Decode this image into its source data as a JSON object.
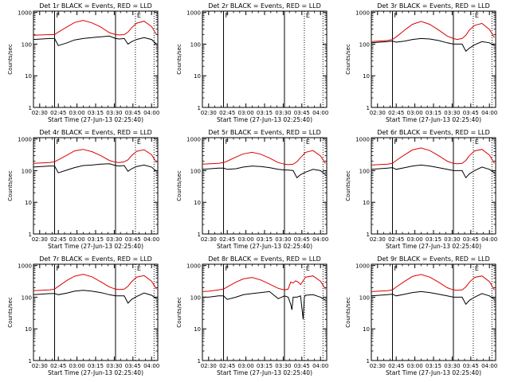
{
  "chart_data": [
    {
      "type": "line",
      "title": "Det 1r  BLACK = Events, RED = LLD",
      "xlabel": "Start Time (27-Jun-13 02:25:40)",
      "ylabel": "Counts/sec",
      "x_ticks": [
        "02:30",
        "02:45",
        "03:00",
        "03:15",
        "03:30",
        "03:45",
        "04:00"
      ],
      "y_ticks": [
        "1",
        "10",
        "100",
        "1000"
      ],
      "xlim_min": [
        25,
        125
      ],
      "ylog": true,
      "ylim": [
        1,
        1100
      ],
      "vlines_solid_min": [
        42,
        91
      ],
      "vlines_dotted_min": [
        107,
        122
      ],
      "markers": [
        {
          "label": "F",
          "t": 42
        },
        {
          "label": "E",
          "t": 107
        }
      ],
      "series": [
        {
          "color": "#000000",
          "x": [
            25,
            38,
            42,
            45,
            52,
            58,
            65,
            72,
            79,
            86,
            91,
            94,
            98,
            101,
            104,
            108,
            114,
            120,
            124
          ],
          "y": [
            140,
            150,
            150,
            90,
            110,
            135,
            150,
            160,
            170,
            180,
            150,
            145,
            150,
            100,
            120,
            140,
            160,
            140,
            100
          ]
        },
        {
          "color": "#dd0000",
          "x": [
            25,
            38,
            42,
            45,
            52,
            58,
            65,
            72,
            79,
            86,
            91,
            94,
            98,
            101,
            104,
            108,
            114,
            120,
            124
          ],
          "y": [
            190,
            200,
            200,
            240,
            350,
            480,
            560,
            470,
            350,
            230,
            200,
            195,
            200,
            240,
            330,
            460,
            530,
            360,
            200
          ]
        }
      ]
    },
    {
      "type": "line",
      "title": "Det 2r  BLACK = Events, RED = LLD",
      "xlabel": "Start Time (27-Jun-13 02:25:40)",
      "ylabel": "Counts/sec",
      "x_ticks": [
        "02:30",
        "02:45",
        "03:00",
        "03:15",
        "03:30",
        "03:45",
        "04:00"
      ],
      "y_ticks": [
        "1",
        "10",
        "100",
        "1000"
      ],
      "xlim_min": [
        25,
        125
      ],
      "ylog": true,
      "ylim": [
        1,
        1100
      ],
      "vlines_solid_min": [
        42,
        91
      ],
      "vlines_dotted_min": [
        107,
        122
      ],
      "markers": [
        {
          "label": "F",
          "t": 42
        },
        {
          "label": "E",
          "t": 107
        }
      ],
      "series": []
    },
    {
      "type": "line",
      "title": "Det 3r  BLACK = Events, RED = LLD",
      "xlabel": "Start Time (27-Jun-13 02:25:40)",
      "ylabel": "Counts/sec",
      "x_ticks": [
        "02:30",
        "02:45",
        "03:00",
        "03:15",
        "03:30",
        "03:45",
        "04:00"
      ],
      "y_ticks": [
        "1",
        "10",
        "100",
        "1000"
      ],
      "xlim_min": [
        25,
        125
      ],
      "ylog": true,
      "ylim": [
        1,
        1100
      ],
      "vlines_solid_min": [
        42,
        91
      ],
      "vlines_dotted_min": [
        107,
        122
      ],
      "markers": [
        {
          "label": "F",
          "t": 42
        },
        {
          "label": "E",
          "t": 107
        }
      ],
      "series": [
        {
          "color": "#000000",
          "x": [
            25,
            38,
            42,
            45,
            52,
            58,
            65,
            72,
            79,
            86,
            91,
            94,
            98,
            101,
            104,
            108,
            114,
            120,
            124
          ],
          "y": [
            110,
            120,
            125,
            115,
            125,
            140,
            150,
            145,
            130,
            110,
            100,
            100,
            100,
            60,
            75,
            95,
            120,
            110,
            90
          ]
        },
        {
          "color": "#dd0000",
          "x": [
            25,
            38,
            42,
            45,
            52,
            58,
            65,
            72,
            79,
            86,
            91,
            94,
            98,
            101,
            104,
            108,
            114,
            120,
            124
          ],
          "y": [
            120,
            130,
            140,
            170,
            280,
            420,
            520,
            420,
            280,
            180,
            150,
            140,
            150,
            190,
            280,
            390,
            450,
            290,
            160
          ]
        }
      ]
    },
    {
      "type": "line",
      "title": "Det 4r  BLACK = Events, RED = LLD",
      "xlabel": "Start Time (27-Jun-13 02:25:40)",
      "ylabel": "Counts/sec",
      "x_ticks": [
        "02:30",
        "02:45",
        "03:00",
        "03:15",
        "03:30",
        "03:45",
        "04:00"
      ],
      "y_ticks": [
        "1",
        "10",
        "100",
        "1000"
      ],
      "xlim_min": [
        25,
        125
      ],
      "ylog": true,
      "ylim": [
        1,
        1100
      ],
      "vlines_solid_min": [
        42,
        91
      ],
      "vlines_dotted_min": [
        107,
        122
      ],
      "markers": [
        {
          "label": "F",
          "t": 42
        },
        {
          "label": "E",
          "t": 107
        }
      ],
      "series": [
        {
          "color": "#000000",
          "x": [
            25,
            38,
            42,
            45,
            52,
            58,
            65,
            72,
            79,
            86,
            91,
            94,
            98,
            101,
            104,
            108,
            114,
            120,
            124
          ],
          "y": [
            130,
            140,
            140,
            85,
            105,
            125,
            145,
            150,
            160,
            165,
            145,
            140,
            145,
            95,
            115,
            135,
            150,
            130,
            95
          ]
        },
        {
          "color": "#dd0000",
          "x": [
            25,
            38,
            42,
            45,
            52,
            58,
            65,
            72,
            79,
            86,
            91,
            94,
            98,
            101,
            104,
            108,
            114,
            120,
            124
          ],
          "y": [
            170,
            180,
            190,
            220,
            310,
            420,
            470,
            400,
            300,
            210,
            185,
            180,
            190,
            220,
            300,
            410,
            460,
            320,
            180
          ]
        }
      ]
    },
    {
      "type": "line",
      "title": "Det 5r  BLACK = Events, RED = LLD",
      "xlabel": "Start Time (27-Jun-13 02:25:40)",
      "ylabel": "Counts/sec",
      "x_ticks": [
        "02:30",
        "02:45",
        "03:00",
        "03:15",
        "03:30",
        "03:45",
        "04:00"
      ],
      "y_ticks": [
        "1",
        "10",
        "100",
        "1000"
      ],
      "xlim_min": [
        25,
        125
      ],
      "ylog": true,
      "ylim": [
        1,
        1100
      ],
      "vlines_solid_min": [
        42,
        91
      ],
      "vlines_dotted_min": [
        107,
        122
      ],
      "markers": [
        {
          "label": "F",
          "t": 42
        },
        {
          "label": "E",
          "t": 107
        }
      ],
      "series": [
        {
          "color": "#000000",
          "x": [
            25,
            38,
            42,
            45,
            52,
            58,
            65,
            72,
            79,
            86,
            91,
            94,
            98,
            101,
            104,
            108,
            114,
            120,
            124
          ],
          "y": [
            110,
            120,
            120,
            110,
            115,
            130,
            140,
            135,
            125,
            110,
            105,
            105,
            100,
            60,
            75,
            90,
            110,
            100,
            75
          ]
        },
        {
          "color": "#dd0000",
          "x": [
            25,
            38,
            42,
            45,
            52,
            58,
            65,
            72,
            79,
            86,
            91,
            94,
            98,
            101,
            104,
            108,
            114,
            120,
            124
          ],
          "y": [
            160,
            170,
            180,
            200,
            270,
            340,
            380,
            330,
            250,
            180,
            160,
            155,
            160,
            190,
            260,
            380,
            430,
            290,
            170
          ]
        }
      ]
    },
    {
      "type": "line",
      "title": "Det 6r  BLACK = Events, RED = LLD",
      "xlabel": "Start Time (27-Jun-13 02:25:40)",
      "ylabel": "Counts/sec",
      "x_ticks": [
        "02:30",
        "02:45",
        "03:00",
        "03:15",
        "03:30",
        "03:45",
        "04:00"
      ],
      "y_ticks": [
        "1",
        "10",
        "100",
        "1000"
      ],
      "xlim_min": [
        25,
        125
      ],
      "ylog": true,
      "ylim": [
        1,
        1100
      ],
      "vlines_solid_min": [
        42,
        91
      ],
      "vlines_dotted_min": [
        107,
        122
      ],
      "markers": [
        {
          "label": "F",
          "t": 42
        },
        {
          "label": "E",
          "t": 107
        }
      ],
      "series": [
        {
          "color": "#000000",
          "x": [
            25,
            38,
            42,
            45,
            52,
            58,
            65,
            72,
            79,
            86,
            91,
            94,
            98,
            101,
            104,
            108,
            114,
            120,
            124
          ],
          "y": [
            110,
            120,
            125,
            110,
            125,
            140,
            150,
            140,
            125,
            110,
            100,
            100,
            100,
            60,
            80,
            100,
            130,
            110,
            85
          ]
        },
        {
          "color": "#dd0000",
          "x": [
            25,
            38,
            42,
            45,
            52,
            58,
            65,
            72,
            79,
            86,
            91,
            94,
            98,
            101,
            104,
            108,
            114,
            120,
            124
          ],
          "y": [
            150,
            160,
            170,
            210,
            320,
            450,
            520,
            430,
            300,
            200,
            170,
            165,
            170,
            210,
            300,
            420,
            470,
            310,
            170
          ]
        }
      ]
    },
    {
      "type": "line",
      "title": "Det 7r  BLACK = Events, RED = LLD",
      "xlabel": "Start Time (27-Jun-13 02:25:40)",
      "ylabel": "Counts/sec",
      "x_ticks": [
        "02:30",
        "02:45",
        "03:00",
        "03:15",
        "03:30",
        "03:45",
        "04:00"
      ],
      "y_ticks": [
        "1",
        "10",
        "100",
        "1000"
      ],
      "xlim_min": [
        25,
        125
      ],
      "ylog": true,
      "ylim": [
        1,
        1100
      ],
      "vlines_solid_min": [
        42,
        91
      ],
      "vlines_dotted_min": [
        107,
        122
      ],
      "markers": [
        {
          "label": "F",
          "t": 42
        },
        {
          "label": "E",
          "t": 107
        }
      ],
      "series": [
        {
          "color": "#000000",
          "x": [
            25,
            38,
            42,
            45,
            52,
            58,
            65,
            72,
            79,
            86,
            91,
            94,
            98,
            101,
            104,
            108,
            114,
            120,
            124
          ],
          "y": [
            120,
            130,
            130,
            120,
            135,
            155,
            165,
            155,
            140,
            120,
            110,
            110,
            110,
            65,
            85,
            105,
            135,
            115,
            90
          ]
        },
        {
          "color": "#dd0000",
          "x": [
            25,
            38,
            42,
            45,
            52,
            58,
            65,
            72,
            79,
            86,
            91,
            94,
            98,
            101,
            104,
            108,
            114,
            120,
            124
          ],
          "y": [
            160,
            170,
            180,
            220,
            340,
            460,
            530,
            440,
            310,
            210,
            180,
            175,
            180,
            220,
            310,
            430,
            480,
            320,
            180
          ]
        }
      ]
    },
    {
      "type": "line",
      "title": "Det 8r  BLACK = Events, RED = LLD",
      "xlabel": "Start Time (27-Jun-13 02:25:40)",
      "ylabel": "Counts/sec",
      "x_ticks": [
        "02:30",
        "02:45",
        "03:00",
        "03:15",
        "03:30",
        "03:45",
        "04:00"
      ],
      "y_ticks": [
        "1",
        "10",
        "100",
        "1000"
      ],
      "xlim_min": [
        25,
        125
      ],
      "ylog": true,
      "ylim": [
        1,
        1100
      ],
      "vlines_solid_min": [
        42,
        91
      ],
      "vlines_dotted_min": [
        107,
        122
      ],
      "markers": [
        {
          "label": "F",
          "t": 42
        },
        {
          "label": "E",
          "t": 107
        }
      ],
      "series": [
        {
          "color": "#000000",
          "x": [
            25,
            30,
            38,
            42,
            45,
            52,
            58,
            65,
            72,
            79,
            86,
            91,
            94,
            96,
            97,
            98,
            101,
            104,
            106,
            107,
            108,
            114,
            120,
            124
          ],
          "y": [
            100,
            100,
            110,
            110,
            85,
            100,
            120,
            130,
            140,
            150,
            90,
            110,
            100,
            60,
            40,
            100,
            100,
            110,
            20,
            100,
            115,
            120,
            100,
            80
          ]
        },
        {
          "color": "#dd0000",
          "x": [
            25,
            30,
            38,
            42,
            45,
            52,
            58,
            65,
            72,
            79,
            86,
            91,
            94,
            96,
            98,
            100,
            102,
            104,
            108,
            114,
            120,
            124
          ],
          "y": [
            150,
            155,
            170,
            180,
            210,
            300,
            380,
            420,
            350,
            260,
            190,
            170,
            180,
            300,
            280,
            330,
            300,
            250,
            430,
            470,
            320,
            180
          ]
        }
      ]
    },
    {
      "type": "line",
      "title": "Det 9r  BLACK = Events, RED = LLD",
      "xlabel": "Start Time (27-Jun-13 02:25:40)",
      "ylabel": "Counts/sec",
      "x_ticks": [
        "02:30",
        "02:45",
        "03:00",
        "03:15",
        "03:30",
        "03:45",
        "04:00"
      ],
      "y_ticks": [
        "1",
        "10",
        "100",
        "1000"
      ],
      "xlim_min": [
        25,
        125
      ],
      "ylog": true,
      "ylim": [
        1,
        1100
      ],
      "vlines_solid_min": [
        42,
        91
      ],
      "vlines_dotted_min": [
        107,
        122
      ],
      "markers": [
        {
          "label": "F",
          "t": 42
        },
        {
          "label": "E",
          "t": 107
        }
      ],
      "series": [
        {
          "color": "#000000",
          "x": [
            25,
            38,
            42,
            45,
            52,
            58,
            65,
            72,
            79,
            86,
            91,
            94,
            98,
            101,
            104,
            108,
            114,
            120,
            124
          ],
          "y": [
            110,
            120,
            125,
            110,
            125,
            140,
            150,
            140,
            125,
            110,
            100,
            100,
            100,
            60,
            80,
            100,
            130,
            110,
            85
          ]
        },
        {
          "color": "#dd0000",
          "x": [
            25,
            38,
            42,
            45,
            52,
            58,
            65,
            72,
            79,
            86,
            91,
            94,
            98,
            101,
            104,
            108,
            114,
            120,
            124
          ],
          "y": [
            150,
            160,
            170,
            210,
            320,
            450,
            520,
            430,
            300,
            200,
            170,
            165,
            170,
            210,
            300,
            420,
            470,
            310,
            170
          ]
        }
      ]
    }
  ]
}
